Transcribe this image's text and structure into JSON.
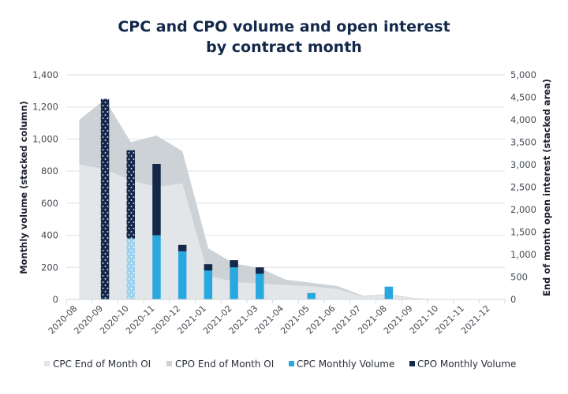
{
  "chart_data": {
    "type": "bar",
    "subtype": "stacked column with stacked area on secondary axis",
    "title": "CPC and CPO volume and open interest",
    "title_line2": "by contract month",
    "ylabel": "Monthly volume (stacked column)",
    "y2label": "End of month open interest (stacked area)",
    "xlabel": "",
    "ylim": [
      0,
      1400
    ],
    "y2lim": [
      0,
      5000
    ],
    "yticks": [
      0,
      200,
      400,
      600,
      800,
      1000,
      1200,
      1400
    ],
    "yticklabels": [
      "0",
      "200",
      "400",
      "600",
      "800",
      "1,000",
      "1,200",
      "1,400"
    ],
    "y2ticks": [
      0,
      500,
      1000,
      1500,
      2000,
      2500,
      3000,
      3500,
      4000,
      4500,
      5000
    ],
    "y2ticklabels": [
      "0",
      "500",
      "1,000",
      "1,500",
      "2,000",
      "2,500",
      "3,000",
      "3,500",
      "4,000",
      "4,500",
      "5,000"
    ],
    "grid": true,
    "legend_position": "bottom",
    "categories": [
      "2020-08",
      "2020-09",
      "2020-10",
      "2020-11",
      "2020-12",
      "2021-01",
      "2021-02",
      "2021-03",
      "2021-04",
      "2021-05",
      "2021-06",
      "2021-07",
      "2021-08",
      "2021-09",
      "2021-10",
      "2021-11",
      "2021-12"
    ],
    "series": [
      {
        "name": "CPC End of Month OI",
        "kind": "area",
        "axis": "right",
        "color": "#e3e6e9",
        "values": [
          3000,
          2900,
          2650,
          2500,
          2580,
          530,
          390,
          350,
          320,
          290,
          230,
          60,
          100,
          20,
          0,
          0,
          0
        ]
      },
      {
        "name": "CPO End of Month OI",
        "kind": "area",
        "axis": "right",
        "color": "#cdd2d6",
        "values": [
          1000,
          1550,
          850,
          1150,
          720,
          610,
          410,
          350,
          120,
          80,
          70,
          20,
          20,
          10,
          0,
          0,
          0
        ]
      },
      {
        "name": "CPC Monthly Volume",
        "kind": "bar",
        "axis": "left",
        "color": "#29a8e0",
        "values": [
          0,
          0,
          380,
          400,
          300,
          180,
          200,
          160,
          0,
          40,
          0,
          0,
          80,
          0,
          0,
          0,
          0
        ]
      },
      {
        "name": "CPO Monthly Volume",
        "kind": "bar",
        "axis": "left",
        "color": "#13284a",
        "values": [
          0,
          1250,
          550,
          445,
          40,
          40,
          45,
          40,
          0,
          0,
          0,
          0,
          0,
          0,
          0,
          0,
          0
        ]
      }
    ],
    "patterned_categories": [
      "2020-09",
      "2020-10"
    ]
  },
  "colors": {
    "title": "#13284a",
    "grid": "#e4e6e8",
    "cpc_oi": "#e3e6e9",
    "cpo_oi": "#cdd2d6",
    "cpc_vol": "#29a8e0",
    "cpc_vol_patterned": "#9fd1ec",
    "cpo_vol": "#13284a"
  }
}
